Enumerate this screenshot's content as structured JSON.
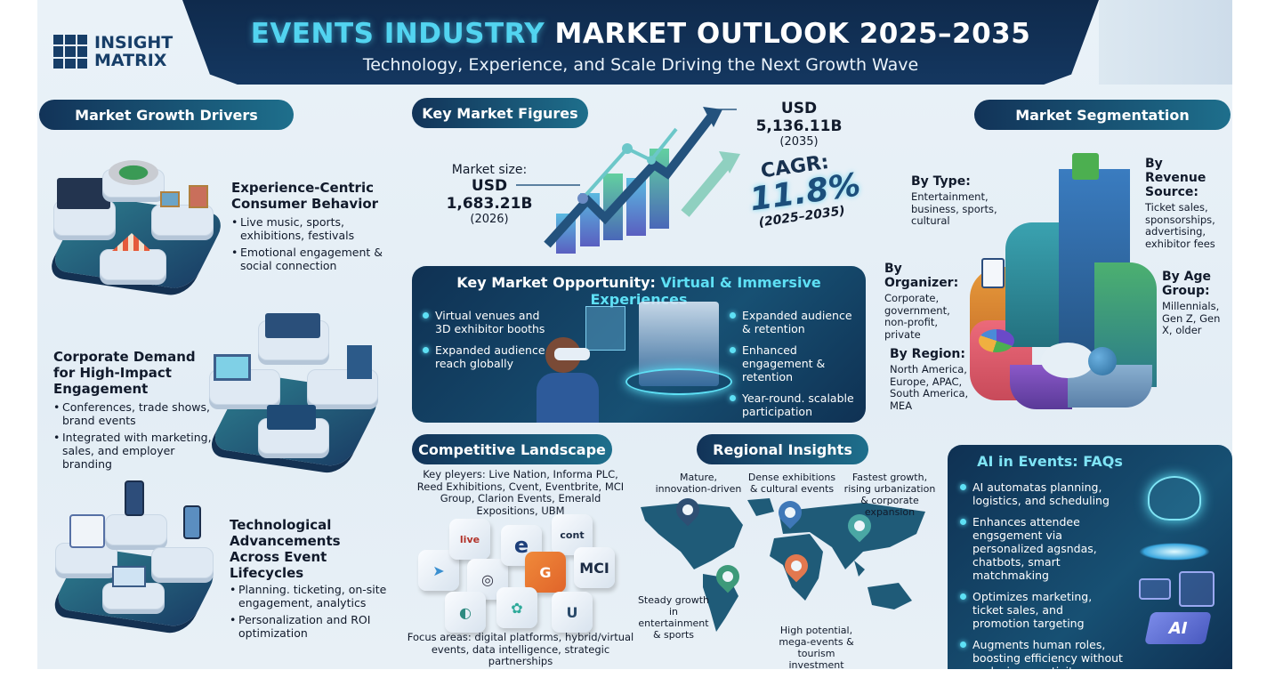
{
  "brand": {
    "line1": "INSIGHT",
    "line2": "MATRIX"
  },
  "header": {
    "title_highlight": "EVENTS INDUSTRY",
    "title_rest": "MARKET OUTLOOK 2025–2035",
    "subtitle": "Technology, Experience, and Scale Driving the Next Growth Wave"
  },
  "drivers": {
    "title": "Market Growth Drivers",
    "items": [
      {
        "heading": "Experience-Centric Consumer Behavior",
        "icon": "venues-illustration",
        "bullets": [
          "Live music, sports, exhibitions, festivals",
          "Emotional engagement & social connection"
        ]
      },
      {
        "heading": "Corporate Demand for High-Impact Engagement",
        "icon": "expo-booths-illustration",
        "bullets": [
          "Conferences, trade shows, brand events",
          "Integrated with marketing, sales, and employer branding"
        ]
      },
      {
        "heading": "Technological Advancements Across Event Lifecycles",
        "icon": "event-tech-illustration",
        "bullets": [
          "Planning. ticketing, on-site engagement, analytics",
          "Personalization and ROI optimization"
        ]
      }
    ]
  },
  "figures": {
    "title": "Key Market Figures",
    "size_label": "Market size:",
    "size_value": "USD 1,683.21B",
    "size_year": "(2026)",
    "future_value": "USD 5,136.11B",
    "future_year": "(2035)",
    "cagr_label": "CAGR:",
    "cagr_value": "11.8%",
    "cagr_period": "(2025–2035)"
  },
  "opportunity": {
    "title_main": "Key Market Opportunity:",
    "title_highlight": "Virtual & Immersive Experiences",
    "left": [
      "Virtual venues and 3D exhibitor booths",
      "Expanded audience reach globally"
    ],
    "right": [
      "Expanded audience & retention",
      "Enhanced engagement & retention",
      "Year-round. scalable participation"
    ]
  },
  "competitive": {
    "title": "Competitive Landscape",
    "players": "Key pleyers: Live Nation, Informa PLC, Reed Exhibitions, Cvent, Eventbrite, MCI Group, Clarion Events, Emerald Expositions, UBM",
    "logos": [
      "",
      "live",
      "",
      "e",
      "cont",
      "",
      "G",
      "MCI",
      "",
      "",
      "U"
    ],
    "focus": "Focus areas: digital platforms, hybrid/virtual events, data intelligence, strategic partnerships"
  },
  "regional": {
    "title": "Regional Insights",
    "notes": [
      {
        "text": "Mature, innovation-driven",
        "color": "#2e4f73"
      },
      {
        "text": "Dense exhibitions & cultural events",
        "color": "#3f78b8"
      },
      {
        "text": "Fastest growth, rising urbanization & corporate expansion",
        "color": "#4aa7a4"
      },
      {
        "text": "Steady growth in entertainment & sports",
        "color": "#3d9a7a"
      },
      {
        "text": "High potential, mega-events & tourism investment",
        "color": "#e2784f"
      }
    ]
  },
  "segmentation": {
    "title": "Market Segmentation",
    "items": [
      {
        "heading": "By Type:",
        "text": "Entertainment, business, sports, cultural"
      },
      {
        "heading": "By Revenue Source:",
        "text": "Ticket sales, sponsorships, advertising, exhibitor fees"
      },
      {
        "heading": "By Organizer:",
        "text": "Corporate, government, non-profit, private"
      },
      {
        "heading": "By Age Group:",
        "text": "Millennials, Gen Z, Gen X, older"
      },
      {
        "heading": "By Region:",
        "text": "North America, Europe, APAC, South America, MEA"
      }
    ]
  },
  "ai": {
    "title": "AI in Events: FAQs",
    "bullets": [
      "AI automatas planning, logistics, and scheduling",
      "Enhances attendee engsgement via personalized agsndas, chatbots, smart matchmaking",
      "Optimizes marketing, ticket sales, and promotion targeting",
      "Augments human roles, boosting efficiency without replacing creativity"
    ],
    "chip_label": "AI"
  },
  "colors": {
    "navy": "#0f2a4c",
    "accent": "#52d4f0",
    "teal": "#1e6f8c"
  }
}
